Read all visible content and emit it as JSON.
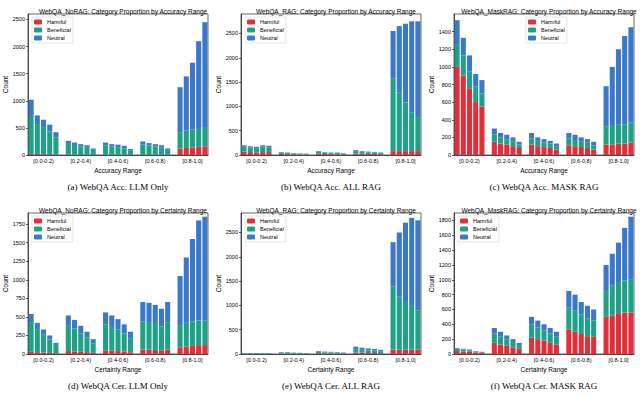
{
  "chart_data": [
    {
      "type": "bar",
      "title": "WebQA_NoRAG: Category Proportion by Accuracy Range",
      "caption": "(a) WebQA Acc. LLM Only",
      "x_label": "Accuracy Range",
      "y_label": "Count",
      "stacked": true,
      "legend": "upper left",
      "categories": [
        null,
        null,
        "[0.0-0.2)",
        null,
        null,
        null,
        null,
        null,
        "[0.2-0.4)",
        null,
        null,
        null,
        null,
        null,
        "[0.4-0.6)",
        null,
        null,
        null,
        null,
        null,
        "[0.6-0.8)",
        null,
        null,
        null,
        null,
        null,
        "[0.8-1.0]",
        null,
        null
      ],
      "series": [
        {
          "name": "Harmful",
          "color": "#e0303a",
          "values": [
            20,
            20,
            15,
            15,
            10,
            null,
            5,
            5,
            5,
            5,
            3,
            null,
            5,
            5,
            5,
            5,
            3,
            null,
            5,
            5,
            5,
            5,
            3,
            null,
            120,
            130,
            140,
            150,
            160
          ]
        },
        {
          "name": "Beneficial",
          "color": "#1fa187",
          "values": [
            700,
            550,
            500,
            420,
            310,
            null,
            200,
            180,
            150,
            140,
            90,
            null,
            170,
            150,
            140,
            120,
            80,
            null,
            190,
            170,
            150,
            130,
            90,
            null,
            300,
            320,
            330,
            330,
            340
          ]
        },
        {
          "name": "Neutral",
          "color": "#3a78c9",
          "values": [
            300,
            160,
            135,
            125,
            100,
            null,
            55,
            45,
            45,
            35,
            27,
            null,
            55,
            45,
            45,
            45,
            27,
            null,
            55,
            45,
            45,
            45,
            27,
            null,
            830,
            1000,
            1230,
            1620,
            1950
          ]
        }
      ],
      "ylim": [
        0,
        2600
      ],
      "yticks": [
        0,
        500,
        1000,
        1500,
        2000,
        2500
      ]
    },
    {
      "type": "bar",
      "title": "WebQA_RAG: Category Proportion by Accuracy Range",
      "caption": "(b) WebQA Acc. ALL RAG",
      "x_label": "Accuracy Range",
      "y_label": "Count",
      "stacked": true,
      "legend": "upper left",
      "categories": [
        null,
        null,
        "[0.0-0.2)",
        null,
        null,
        null,
        null,
        null,
        "[0.2-0.4)",
        null,
        null,
        null,
        null,
        null,
        "[0.4-0.6)",
        null,
        null,
        null,
        null,
        null,
        "[0.6-0.8)",
        null,
        null,
        null,
        null,
        null,
        "[0.8-1.0]",
        null,
        null
      ],
      "series": [
        {
          "name": "Harmful",
          "color": "#e0303a",
          "values": [
            70,
            60,
            55,
            60,
            60,
            null,
            20,
            15,
            15,
            10,
            10,
            null,
            25,
            20,
            15,
            15,
            10,
            null,
            30,
            25,
            20,
            20,
            15,
            null,
            80,
            80,
            80,
            80,
            80
          ]
        },
        {
          "name": "Beneficial",
          "color": "#1fa187",
          "values": [
            100,
            90,
            85,
            110,
            100,
            null,
            30,
            25,
            20,
            20,
            15,
            null,
            40,
            30,
            25,
            25,
            20,
            null,
            50,
            40,
            35,
            30,
            25,
            null,
            1500,
            1200,
            1000,
            800,
            700
          ]
        },
        {
          "name": "Neutral",
          "color": "#3a78c9",
          "values": [
            30,
            30,
            30,
            30,
            30,
            null,
            10,
            10,
            5,
            5,
            5,
            null,
            15,
            10,
            10,
            10,
            10,
            null,
            20,
            15,
            15,
            15,
            10,
            null,
            970,
            1370,
            1620,
            1870,
            1970
          ]
        }
      ],
      "ylim": [
        0,
        2900
      ],
      "yticks": [
        0,
        500,
        1000,
        1500,
        2000,
        2500
      ]
    },
    {
      "type": "bar",
      "title": "WebQA_MaskRAG: Category Proportion by Accuracy Range",
      "caption": "(c) WebQA Acc. MASK RAG",
      "x_label": "Accuracy Range",
      "y_label": "Count",
      "stacked": true,
      "legend": "upper center",
      "categories": [
        null,
        null,
        "[0.0-0.2)",
        null,
        null,
        null,
        null,
        null,
        "[0.2-0.4)",
        null,
        null,
        null,
        null,
        null,
        "[0.4-0.6)",
        null,
        null,
        null,
        null,
        null,
        "[0.6-0.8)",
        null,
        null,
        null,
        null,
        null,
        "[0.8-1.0]",
        null,
        null
      ],
      "series": [
        {
          "name": "Harmful",
          "color": "#e0303a",
          "values": [
            1000,
            900,
            750,
            600,
            550,
            null,
            150,
            130,
            120,
            100,
            80,
            null,
            120,
            100,
            90,
            80,
            60,
            null,
            110,
            100,
            90,
            80,
            60,
            null,
            120,
            120,
            130,
            130,
            140
          ]
        },
        {
          "name": "Beneficial",
          "color": "#1fa187",
          "values": [
            250,
            230,
            200,
            180,
            150,
            null,
            80,
            70,
            60,
            50,
            40,
            null,
            70,
            60,
            50,
            50,
            40,
            null,
            80,
            70,
            60,
            60,
            50,
            null,
            200,
            210,
            220,
            220,
            230
          ]
        },
        {
          "name": "Neutral",
          "color": "#3a78c9",
          "values": [
            280,
            200,
            180,
            140,
            150,
            null,
            70,
            50,
            50,
            50,
            30,
            null,
            60,
            40,
            40,
            30,
            30,
            null,
            60,
            60,
            50,
            40,
            40,
            null,
            460,
            670,
            850,
            1000,
            1080
          ]
        }
      ],
      "ylim": [
        0,
        1600
      ],
      "yticks": [
        0,
        200,
        400,
        600,
        800,
        1000,
        1200,
        1400
      ]
    },
    {
      "type": "bar",
      "title": "WebQA_NoRAG: Category Proportion by Certainty Range",
      "caption": "(d) WebQA Cer. LLM Only",
      "x_label": "Certainty Range",
      "y_label": "Count",
      "stacked": true,
      "legend": "upper left",
      "categories": [
        null,
        null,
        "[0.0-0.2)",
        null,
        null,
        null,
        null,
        null,
        "[0.2-0.4)",
        null,
        null,
        null,
        null,
        null,
        "[0.4-0.6)",
        null,
        null,
        null,
        null,
        null,
        "[0.6-0.8)",
        null,
        null,
        null,
        null,
        null,
        "[0.8-1.0]",
        null,
        null
      ],
      "series": [
        {
          "name": "Harmful",
          "color": "#e0303a",
          "values": [
            30,
            25,
            20,
            15,
            10,
            null,
            40,
            35,
            30,
            25,
            15,
            null,
            50,
            45,
            40,
            35,
            25,
            null,
            60,
            60,
            55,
            50,
            60,
            null,
            90,
            100,
            110,
            120,
            120
          ]
        },
        {
          "name": "Beneficial",
          "color": "#1fa187",
          "values": [
            400,
            310,
            240,
            180,
            110,
            null,
            350,
            310,
            250,
            200,
            130,
            null,
            350,
            320,
            290,
            240,
            180,
            null,
            380,
            370,
            350,
            320,
            360,
            null,
            300,
            320,
            330,
            330,
            330
          ]
        },
        {
          "name": "Neutral",
          "color": "#3a78c9",
          "values": [
            110,
            85,
            70,
            55,
            30,
            null,
            130,
            115,
            100,
            75,
            55,
            null,
            160,
            155,
            140,
            125,
            95,
            null,
            260,
            260,
            255,
            240,
            280,
            null,
            660,
            880,
            1110,
            1350,
            1400
          ]
        }
      ],
      "ylim": [
        0,
        1900
      ],
      "yticks": [
        0,
        250,
        500,
        750,
        1000,
        1250,
        1500,
        1750
      ]
    },
    {
      "type": "bar",
      "title": "WebQA_RAG: Category Proportion by Certainty Range",
      "caption": "(e) WebQA Cer. ALL RAG",
      "x_label": "Certainty Range",
      "y_label": "Count",
      "stacked": true,
      "legend": "upper left",
      "categories": [
        null,
        null,
        "[0.0-0.2)",
        null,
        null,
        null,
        null,
        null,
        "[0.2-0.4)",
        null,
        null,
        null,
        null,
        null,
        "[0.4-0.6)",
        null,
        null,
        null,
        null,
        null,
        "[0.6-0.8)",
        null,
        null,
        null,
        null,
        null,
        "[0.8-1.0]",
        null,
        null
      ],
      "series": [
        {
          "name": "Harmful",
          "color": "#e0303a",
          "values": [
            5,
            5,
            5,
            5,
            5,
            null,
            10,
            10,
            10,
            5,
            5,
            null,
            15,
            10,
            10,
            10,
            5,
            null,
            30,
            25,
            20,
            20,
            15,
            null,
            90,
            90,
            90,
            90,
            90
          ]
        },
        {
          "name": "Beneficial",
          "color": "#1fa187",
          "values": [
            10,
            10,
            10,
            10,
            10,
            null,
            20,
            20,
            15,
            15,
            10,
            null,
            30,
            25,
            25,
            20,
            15,
            null,
            70,
            60,
            55,
            50,
            40,
            null,
            1300,
            1100,
            1000,
            900,
            800
          ]
        },
        {
          "name": "Neutral",
          "color": "#3a78c9",
          "values": [
            5,
            5,
            5,
            5,
            5,
            null,
            10,
            10,
            5,
            5,
            5,
            null,
            15,
            15,
            10,
            10,
            10,
            null,
            50,
            45,
            40,
            35,
            30,
            null,
            910,
            1310,
            1610,
            1810,
            1860
          ]
        }
      ],
      "ylim": [
        0,
        2900
      ],
      "yticks": [
        0,
        500,
        1000,
        1500,
        2000,
        2500
      ]
    },
    {
      "type": "bar",
      "title": "WebQA_MaskRAG: Category Proportion by Certainty Range",
      "caption": "(f) WebQA Cer. MASK RAG",
      "x_label": "Certainty Range",
      "y_label": "Count",
      "stacked": true,
      "legend": "upper left",
      "categories": [
        null,
        null,
        "[0.0-0.2)",
        null,
        null,
        null,
        null,
        null,
        "[0.2-0.4)",
        null,
        null,
        null,
        null,
        null,
        "[0.4-0.6)",
        null,
        null,
        null,
        null,
        null,
        "[0.6-0.8)",
        null,
        null,
        null,
        null,
        null,
        "[0.8-1.0]",
        null,
        null
      ],
      "series": [
        {
          "name": "Harmful",
          "color": "#e0303a",
          "values": [
            40,
            35,
            30,
            20,
            15,
            null,
            150,
            130,
            110,
            90,
            70,
            null,
            220,
            200,
            180,
            150,
            130,
            null,
            330,
            300,
            270,
            240,
            230,
            null,
            500,
            520,
            550,
            560,
            560
          ]
        },
        {
          "name": "Beneficial",
          "color": "#1fa187",
          "values": [
            30,
            25,
            20,
            15,
            10,
            null,
            130,
            110,
            90,
            70,
            50,
            null,
            180,
            160,
            140,
            130,
            110,
            null,
            300,
            290,
            260,
            240,
            220,
            null,
            350,
            400,
            420,
            430,
            440
          ]
        },
        {
          "name": "Neutral",
          "color": "#3a78c9",
          "values": [
            10,
            10,
            10,
            5,
            5,
            null,
            70,
            60,
            50,
            40,
            30,
            null,
            100,
            90,
            80,
            70,
            60,
            null,
            220,
            210,
            170,
            170,
            150,
            null,
            350,
            430,
            530,
            710,
            850
          ]
        }
      ],
      "ylim": [
        0,
        1900
      ],
      "yticks": [
        0,
        200,
        400,
        600,
        800,
        1000,
        1200,
        1400,
        1600,
        1800
      ]
    }
  ]
}
